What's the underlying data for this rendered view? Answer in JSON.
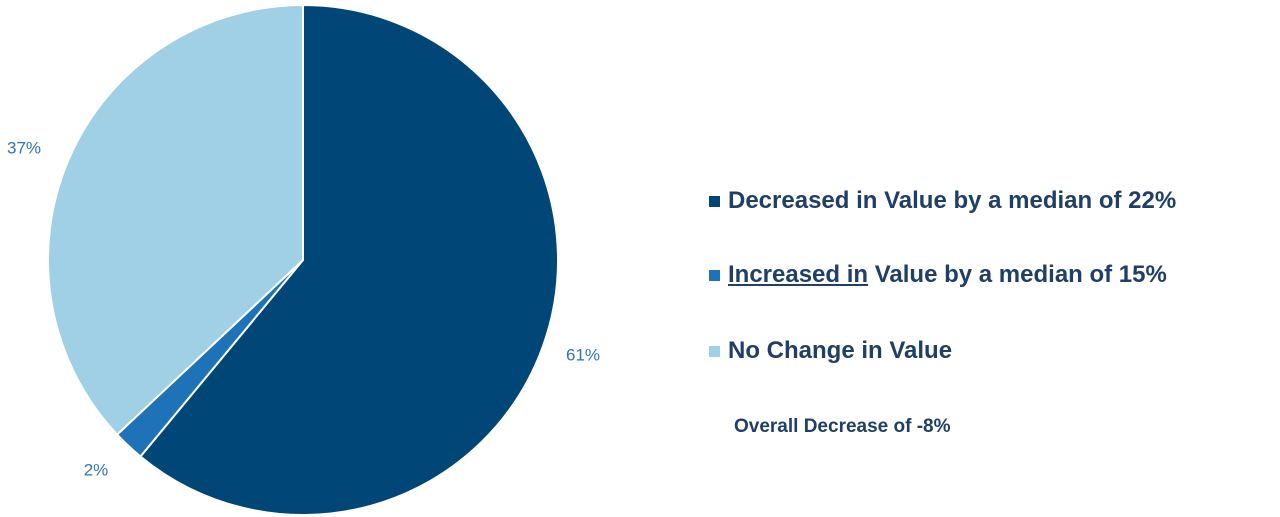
{
  "chart_data": {
    "type": "pie",
    "categories": [
      "Decreased in Value by a median of 22%",
      "Increased in Value by a median of 15%",
      "No Change in Value"
    ],
    "values": [
      61,
      2,
      37
    ],
    "value_labels": [
      "61%",
      "2%",
      "37%"
    ],
    "colors": [
      "#004677",
      "#1e72b8",
      "#9fd0e6"
    ],
    "title": "",
    "legend_position": "right"
  },
  "legend": {
    "items": [
      {
        "text": "Decreased in Value by a median of 22%",
        "color": "#004677"
      },
      {
        "underlined_text": "Increased in",
        "text_rest": " Value by a median of 15%",
        "color": "#1e72b8"
      },
      {
        "text": "No Change in Value",
        "color": "#9fd0e6"
      }
    ]
  },
  "summary": {
    "text": "Overall Decrease of -8%"
  }
}
